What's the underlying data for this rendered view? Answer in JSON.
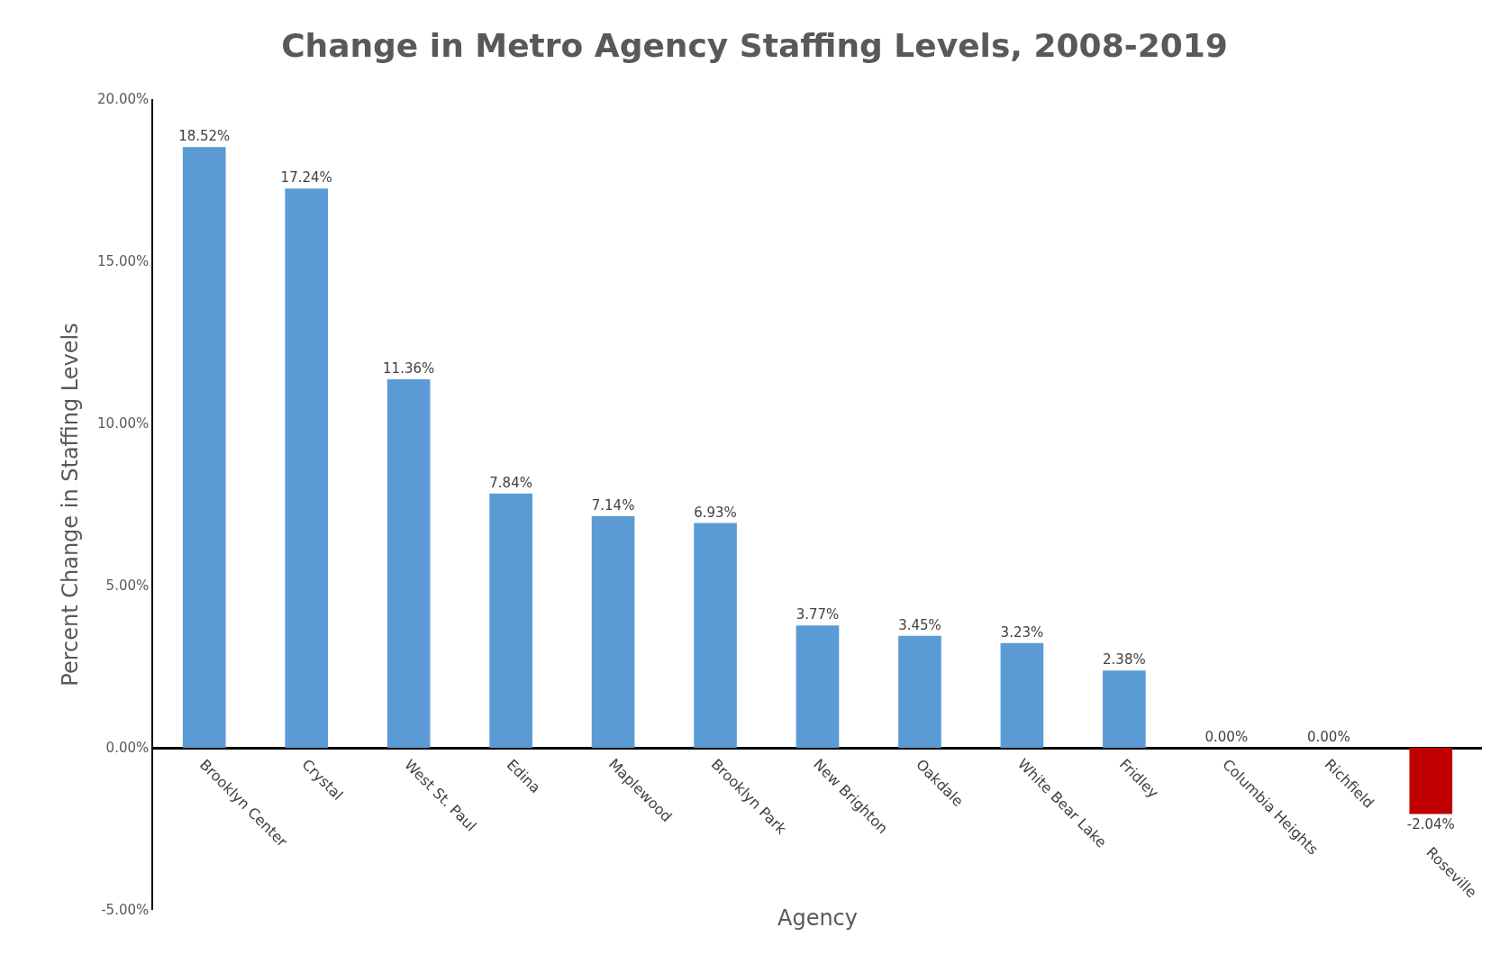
{
  "chart_data": {
    "type": "bar",
    "title": "Change in Metro Agency Staffing Levels, 2008-2019",
    "xlabel": "Agency",
    "ylabel": "Percent Change in Staffing Levels",
    "categories": [
      "Brooklyn Center",
      "Crystal",
      "West St. Paul",
      "Edina",
      "Maplewood",
      "Brooklyn Park",
      "New Brighton",
      "Oakdale",
      "White Bear Lake",
      "Fridley",
      "Columbia Heights",
      "Richfield",
      "Roseville"
    ],
    "values": [
      18.52,
      17.24,
      11.36,
      7.84,
      7.14,
      6.93,
      3.77,
      3.45,
      3.23,
      2.38,
      0.0,
      0.0,
      -2.04
    ],
    "value_labels": [
      "18.52%",
      "17.24%",
      "11.36%",
      "7.84%",
      "7.14%",
      "6.93%",
      "3.77%",
      "3.45%",
      "3.23%",
      "2.38%",
      "0.00%",
      "0.00%",
      "-2.04%"
    ],
    "colors": [
      "#5b9bd5",
      "#5b9bd5",
      "#5b9bd5",
      "#5b9bd5",
      "#5b9bd5",
      "#5b9bd5",
      "#5b9bd5",
      "#5b9bd5",
      "#5b9bd5",
      "#5b9bd5",
      "#5b9bd5",
      "#5b9bd5",
      "#c00000"
    ],
    "ylim": [
      -5,
      20
    ],
    "yticks": [
      {
        "value": -5,
        "label": "-5.00%"
      },
      {
        "value": 0,
        "label": "0.00%"
      },
      {
        "value": 5,
        "label": "5.00%"
      },
      {
        "value": 10,
        "label": "10.00%"
      },
      {
        "value": 15,
        "label": "15.00%"
      },
      {
        "value": 20,
        "label": "20.00%"
      }
    ],
    "data_labels": false
  }
}
